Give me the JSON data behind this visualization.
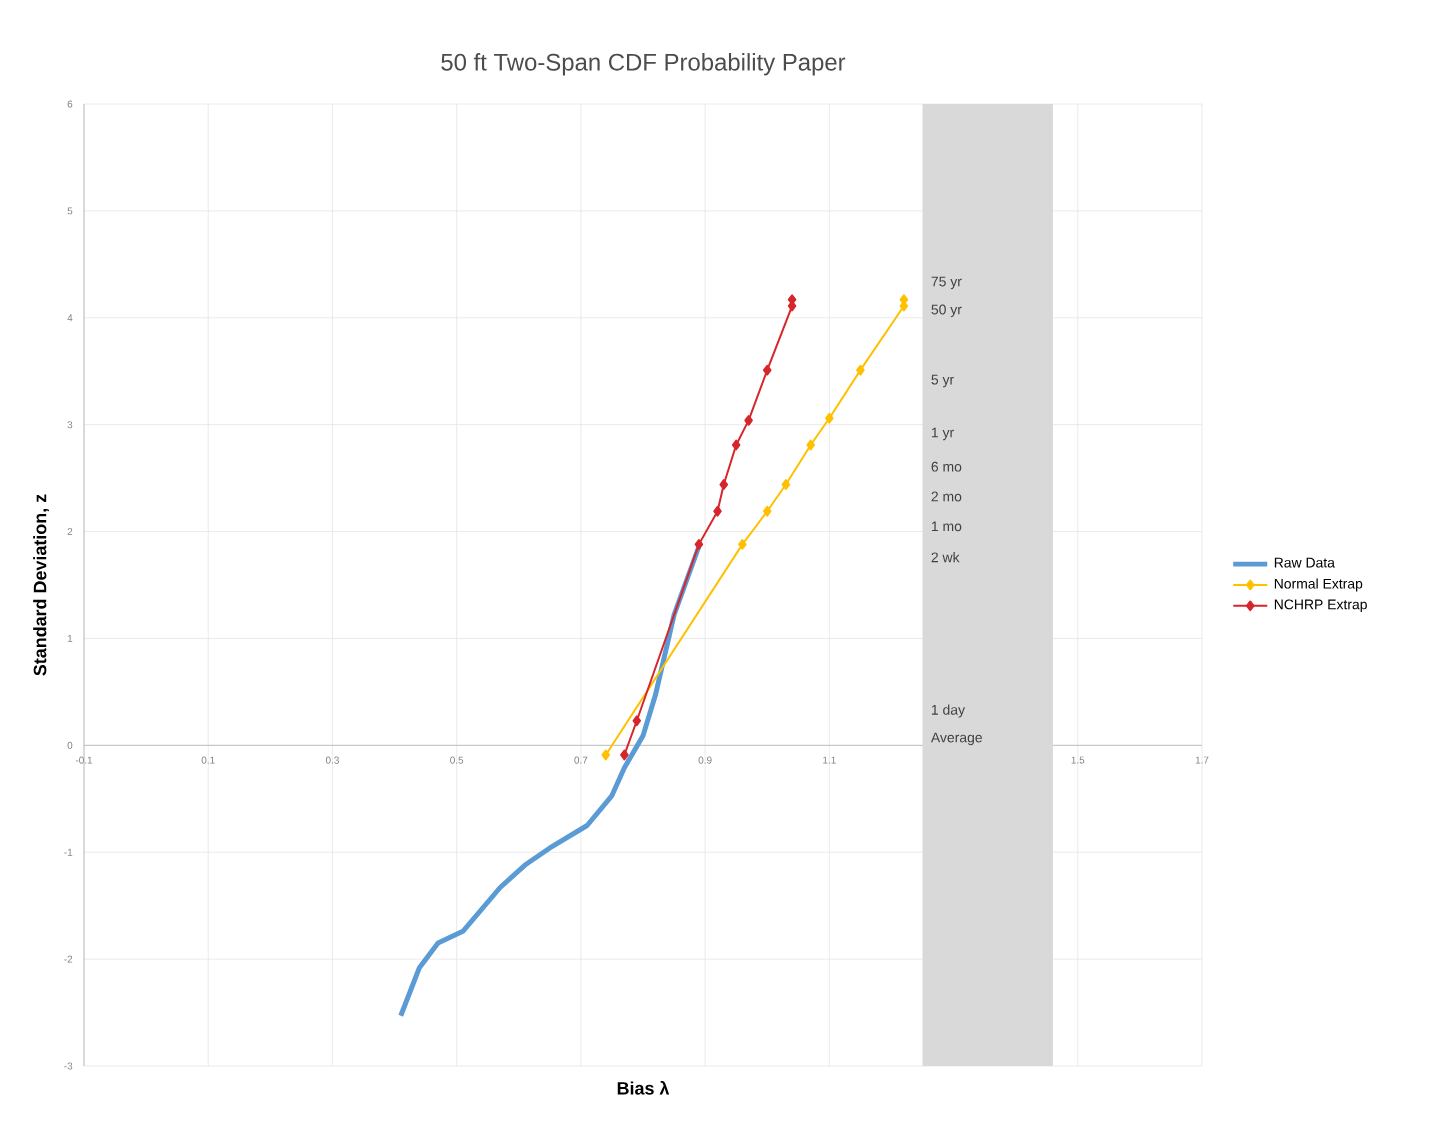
{
  "chart_data": {
    "type": "line",
    "title": "50 ft Two-Span CDF Probability Paper",
    "xlabel": "Bias λ",
    "ylabel": "Standard Deviation, z",
    "xlim": [
      -0.1,
      1.7
    ],
    "xticks": [
      -0.1,
      0.1,
      0.3,
      0.5,
      0.7,
      0.9,
      1.1,
      1.5,
      1.7
    ],
    "ylim": [
      -3,
      6
    ],
    "yticks": [
      -3,
      -2,
      -1,
      0,
      1,
      2,
      3,
      4,
      5,
      6
    ],
    "grid": true,
    "legend": "right",
    "series": [
      {
        "name": "Raw Data",
        "color": "#5b9bd5",
        "marker": "none",
        "x": [
          0.41,
          0.44,
          0.47,
          0.51,
          0.57,
          0.61,
          0.65,
          0.71,
          0.75,
          0.77,
          0.8,
          0.82,
          0.85,
          0.89
        ],
        "values": [
          -2.53,
          -2.08,
          -1.85,
          -1.74,
          -1.33,
          -1.12,
          -0.96,
          -0.75,
          -0.47,
          -0.21,
          0.09,
          0.47,
          1.22,
          1.86
        ]
      },
      {
        "name": "Normal Extrap",
        "color": "#ffc000",
        "marker": "diamond",
        "x": [
          0.74,
          0.96,
          1.0,
          1.03,
          1.07,
          1.1,
          1.15,
          1.22,
          1.22
        ],
        "values": [
          -0.09,
          1.88,
          2.19,
          2.44,
          2.81,
          3.06,
          3.51,
          4.11,
          4.17
        ]
      },
      {
        "name": "NCHRP Extrap",
        "color": "#d7262b",
        "marker": "diamond",
        "x": [
          0.77,
          0.79,
          0.89,
          0.92,
          0.93,
          0.95,
          0.97,
          1.0,
          1.04,
          1.04
        ],
        "values": [
          -0.09,
          0.23,
          1.88,
          2.19,
          2.44,
          2.81,
          3.04,
          3.51,
          4.11,
          4.17
        ]
      }
    ],
    "bands": [
      {
        "axis": "x",
        "from": 1.25,
        "to": 1.46,
        "color": "#d9d9d9"
      }
    ],
    "annotations": [
      "75 yr",
      "50 yr",
      "5 yr",
      "1 yr",
      "6 mo",
      "2 mo",
      "1 mo",
      "2 wk",
      "1 day",
      "Average"
    ]
  }
}
